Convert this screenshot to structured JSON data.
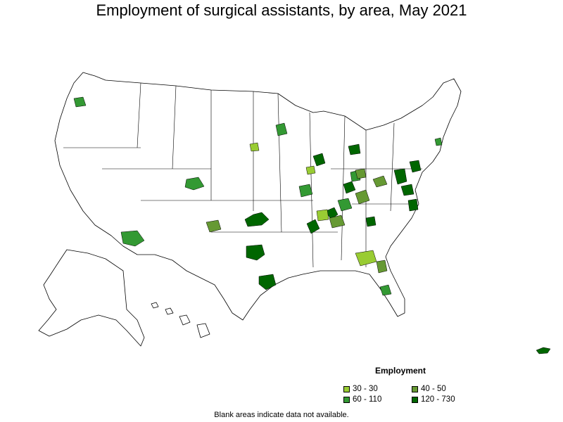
{
  "title": "Employment of surgical assistants, by area, May 2021",
  "legend": {
    "title": "Employment",
    "items": [
      {
        "label": "30 - 30",
        "color": "#99cc33"
      },
      {
        "label": "40 - 50",
        "color": "#669933"
      },
      {
        "label": "60 - 110",
        "color": "#339933"
      },
      {
        "label": "120 - 730",
        "color": "#006600"
      }
    ]
  },
  "footnote": "Blank areas indicate data not available."
}
